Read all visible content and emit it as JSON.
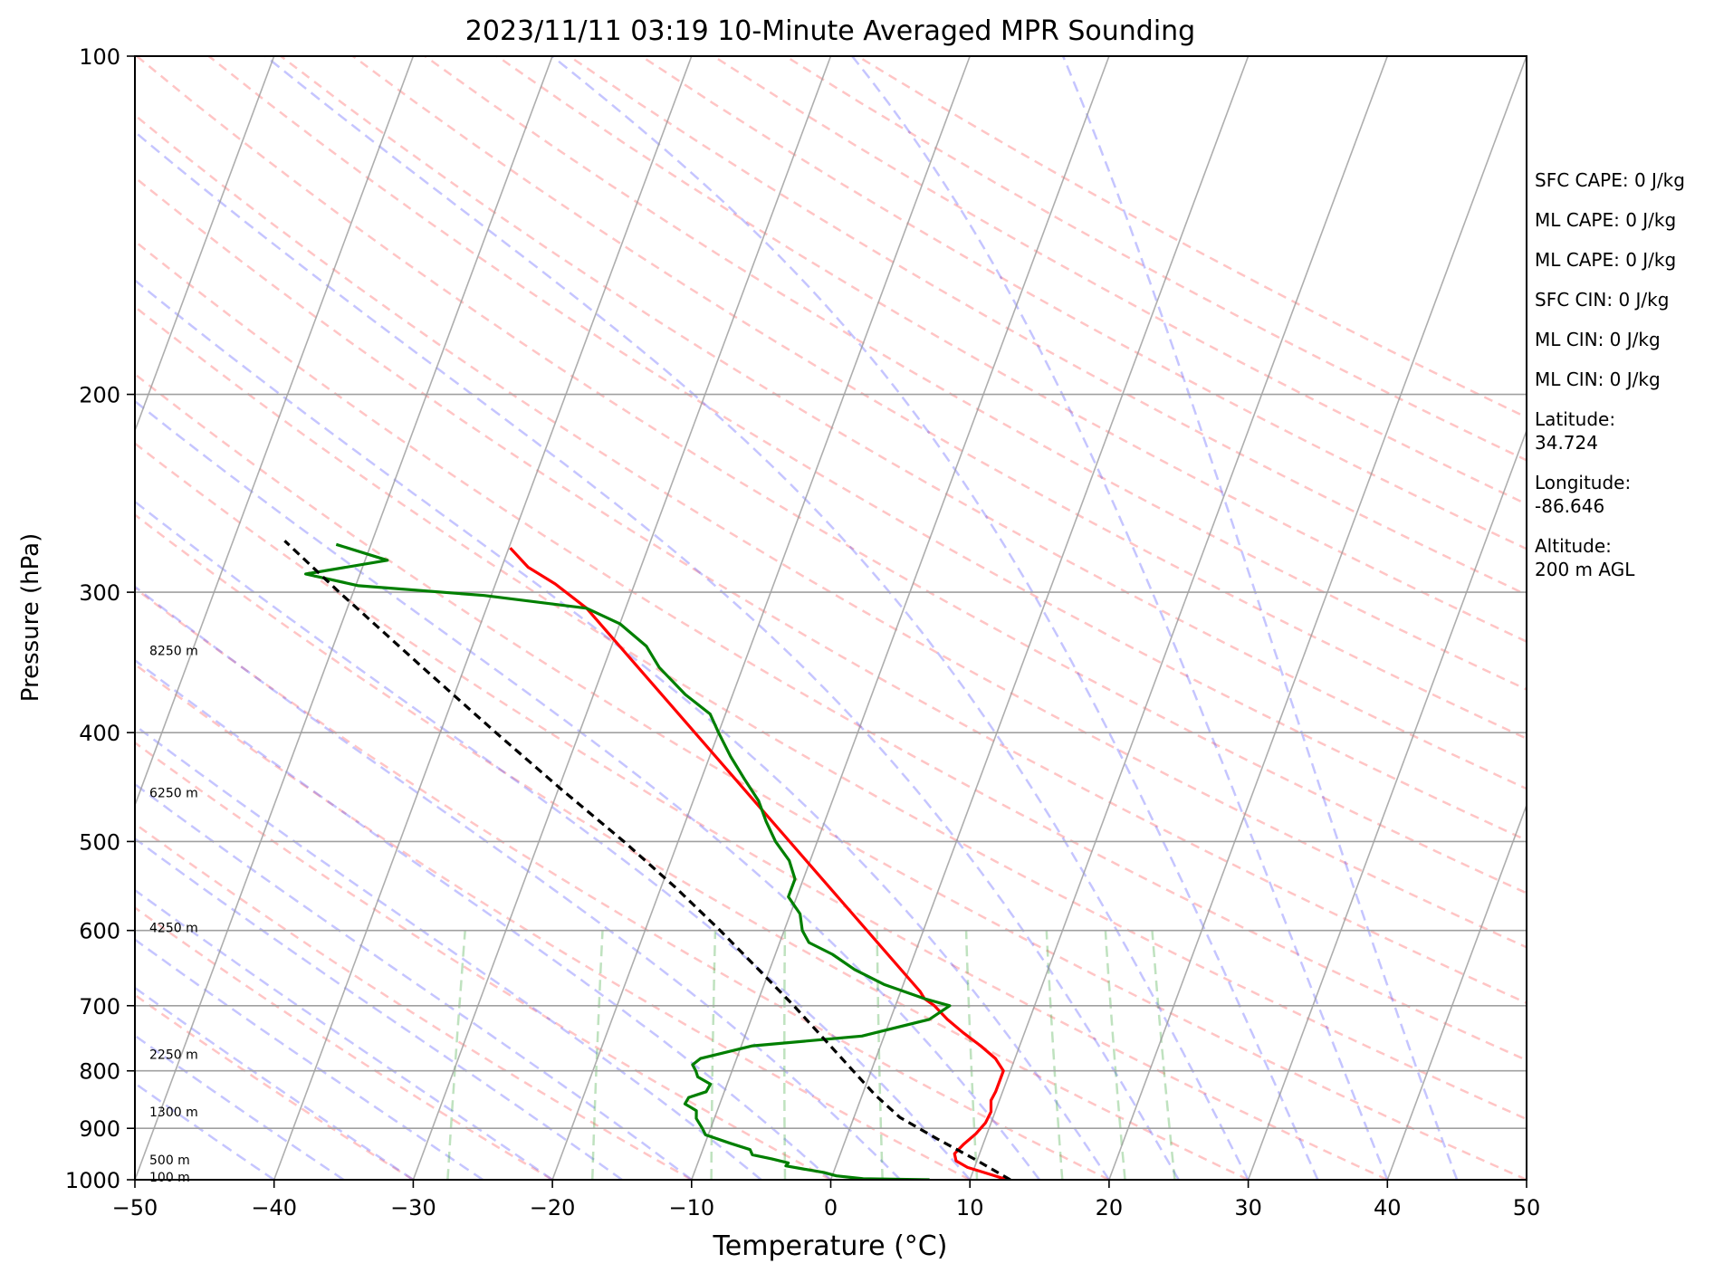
{
  "chart_data": {
    "type": "line",
    "title": "2023/11/11 03:19 10-Minute Averaged MPR Sounding",
    "xlabel": "Temperature (°C)",
    "ylabel": "Pressure (hPa)",
    "xlim": [
      -50,
      50
    ],
    "ylim": [
      1000,
      100
    ],
    "y_scale": "log",
    "grid": true,
    "x_ticks": [
      "−50",
      "−40",
      "−30",
      "−20",
      "−10",
      "0",
      "10",
      "20",
      "30",
      "40",
      "50"
    ],
    "y_ticks": [
      "100",
      "200",
      "300",
      "400",
      "500",
      "600",
      "700",
      "800",
      "900",
      "1000"
    ],
    "height_labels": [
      {
        "p": 1000,
        "label": "100 m"
      },
      {
        "p": 965,
        "label": "500 m"
      },
      {
        "p": 875,
        "label": "1300 m"
      },
      {
        "p": 778,
        "label": "2250 m"
      },
      {
        "p": 600,
        "label": "4250 m"
      },
      {
        "p": 455,
        "label": "6250 m"
      },
      {
        "p": 340,
        "label": "8250 m"
      }
    ],
    "series": [
      {
        "color": "#ff0000",
        "kind": "temperature",
        "points": [
          {
            "p": 1000,
            "t": 12.7
          },
          {
            "p": 985,
            "t": 10.8
          },
          {
            "p": 975,
            "t": 9.5
          },
          {
            "p": 962,
            "t": 8.5
          },
          {
            "p": 948,
            "t": 8.2
          },
          {
            "p": 930,
            "t": 8.6
          },
          {
            "p": 910,
            "t": 9.2
          },
          {
            "p": 890,
            "t": 9.6
          },
          {
            "p": 870,
            "t": 9.7
          },
          {
            "p": 850,
            "t": 9.4
          },
          {
            "p": 835,
            "t": 9.5
          },
          {
            "p": 815,
            "t": 9.5
          },
          {
            "p": 800,
            "t": 9.5
          },
          {
            "p": 780,
            "t": 8.6
          },
          {
            "p": 760,
            "t": 7.2
          },
          {
            "p": 740,
            "t": 5.6
          },
          {
            "p": 720,
            "t": 4.1
          },
          {
            "p": 700,
            "t": 2.8
          },
          {
            "p": 690,
            "t": 1.9
          },
          {
            "p": 680,
            "t": 1.4
          },
          {
            "p": 310,
            "t": -32.8
          },
          {
            "p": 295,
            "t": -35.7
          },
          {
            "p": 285,
            "t": -38.1
          },
          {
            "p": 274,
            "t": -39.9
          }
        ]
      },
      {
        "color": "#007f00",
        "kind": "dewpoint",
        "points": [
          {
            "p": 1000,
            "t": 7.1
          },
          {
            "p": 998,
            "t": 2.3
          },
          {
            "p": 992,
            "t": 0.3
          },
          {
            "p": 985,
            "t": -0.7
          },
          {
            "p": 978,
            "t": -2.3
          },
          {
            "p": 972,
            "t": -3.6
          },
          {
            "p": 966,
            "t": -3.5
          },
          {
            "p": 958,
            "t": -4.8
          },
          {
            "p": 950,
            "t": -6.3
          },
          {
            "p": 940,
            "t": -6.6
          },
          {
            "p": 928,
            "t": -8.2
          },
          {
            "p": 912,
            "t": -10.2
          },
          {
            "p": 900,
            "t": -10.6
          },
          {
            "p": 882,
            "t": -11.3
          },
          {
            "p": 868,
            "t": -11.5
          },
          {
            "p": 856,
            "t": -12.5
          },
          {
            "p": 845,
            "t": -12.4
          },
          {
            "p": 835,
            "t": -11.3
          },
          {
            "p": 822,
            "t": -11.2
          },
          {
            "p": 810,
            "t": -12.3
          },
          {
            "p": 800,
            "t": -12.6
          },
          {
            "p": 790,
            "t": -13.0
          },
          {
            "p": 780,
            "t": -12.6
          },
          {
            "p": 760,
            "t": -9.2
          },
          {
            "p": 745,
            "t": -1.6
          },
          {
            "p": 720,
            "t": 2.8
          },
          {
            "p": 700,
            "t": 3.9
          },
          {
            "p": 690,
            "t": 1.9
          },
          {
            "p": 670,
            "t": -1.4
          },
          {
            "p": 650,
            "t": -3.9
          },
          {
            "p": 630,
            "t": -5.9
          },
          {
            "p": 615,
            "t": -7.9
          },
          {
            "p": 600,
            "t": -8.7
          },
          {
            "p": 580,
            "t": -9.3
          },
          {
            "p": 560,
            "t": -10.6
          },
          {
            "p": 540,
            "t": -10.6
          },
          {
            "p": 520,
            "t": -11.5
          },
          {
            "p": 500,
            "t": -13.0
          },
          {
            "p": 480,
            "t": -14.2
          },
          {
            "p": 460,
            "t": -15.3
          },
          {
            "p": 440,
            "t": -16.9
          },
          {
            "p": 420,
            "t": -18.5
          },
          {
            "p": 400,
            "t": -20.0
          },
          {
            "p": 385,
            "t": -21.1
          },
          {
            "p": 370,
            "t": -23.4
          },
          {
            "p": 350,
            "t": -26.0
          },
          {
            "p": 335,
            "t": -27.5
          },
          {
            "p": 320,
            "t": -30.0
          },
          {
            "p": 310,
            "t": -32.8
          },
          {
            "p": 302,
            "t": -40.5
          },
          {
            "p": 296,
            "t": -49.8
          },
          {
            "p": 289,
            "t": -53.9
          },
          {
            "p": 281,
            "t": -48.4
          },
          {
            "p": 272,
            "t": -52.5
          }
        ]
      },
      {
        "color": "#000000",
        "kind": "parcel",
        "points": [
          {
            "p": 1000,
            "t": 12.9
          },
          {
            "p": 960,
            "t": 9.9
          },
          {
            "p": 920,
            "t": 6.6
          },
          {
            "p": 880,
            "t": 3.3
          },
          {
            "p": 840,
            "t": 0.9
          },
          {
            "p": 800,
            "t": -1.3
          },
          {
            "p": 750,
            "t": -4.2
          },
          {
            "p": 700,
            "t": -7.3
          },
          {
            "p": 650,
            "t": -10.8
          },
          {
            "p": 600,
            "t": -14.6
          },
          {
            "p": 550,
            "t": -18.9
          },
          {
            "p": 500,
            "t": -23.9
          },
          {
            "p": 450,
            "t": -29.7
          },
          {
            "p": 400,
            "t": -36.0
          },
          {
            "p": 350,
            "t": -43.0
          },
          {
            "p": 300,
            "t": -51.0
          },
          {
            "p": 270,
            "t": -56.3
          }
        ]
      }
    ],
    "annotations": [
      "SFC CAPE: 0 J/kg",
      "ML CAPE: 0 J/kg",
      "ML CAPE: 0 J/kg",
      "SFC CIN: 0 J/kg",
      "ML CIN: 0 J/kg",
      "ML CIN: 0 J/kg",
      "Latitude:\n34.724",
      "Longitude:\n-86.646",
      "Altitude:\n200 m AGL"
    ]
  }
}
